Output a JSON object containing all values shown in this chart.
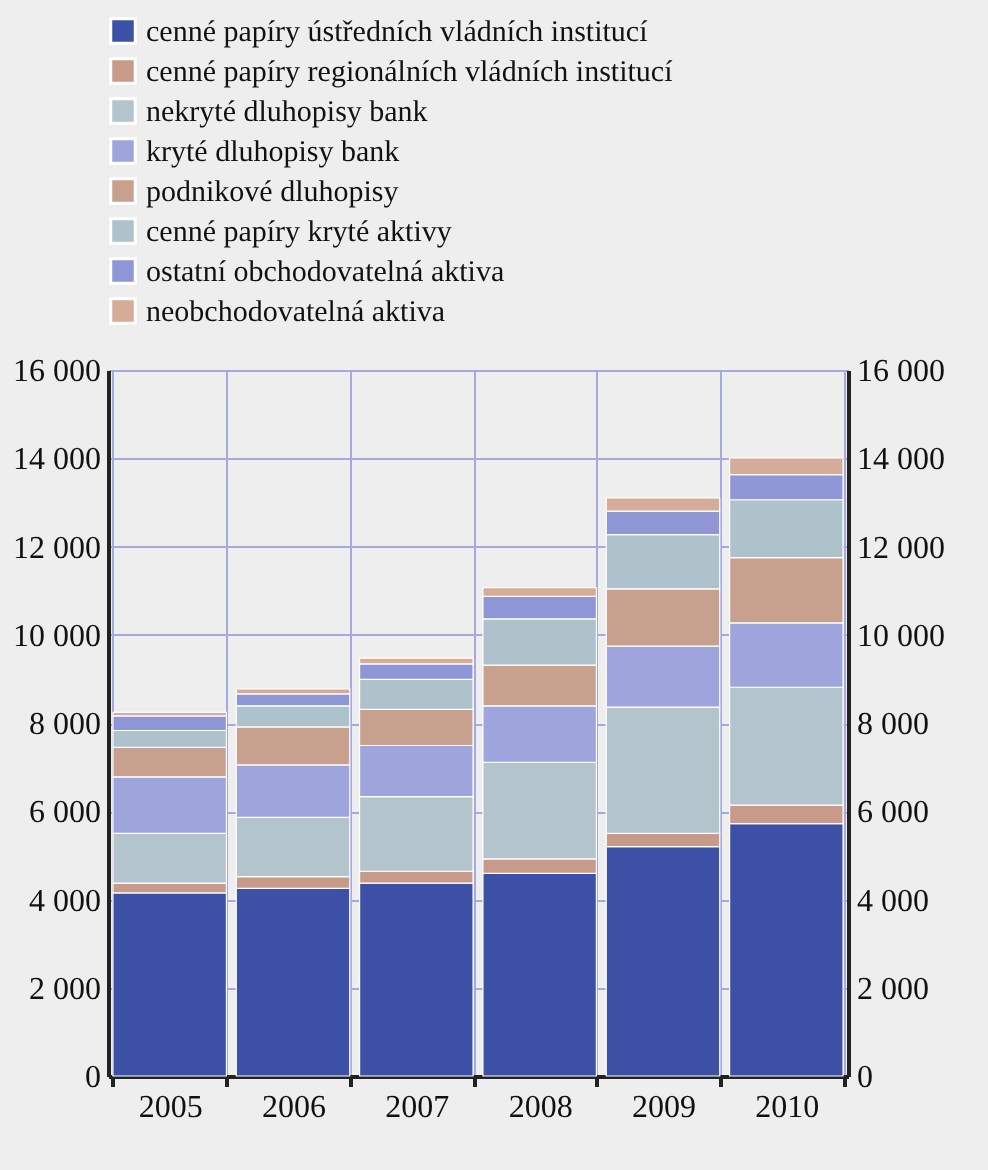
{
  "chart_data": {
    "type": "bar",
    "stacked": true,
    "categories": [
      "2005",
      "2006",
      "2007",
      "2008",
      "2009",
      "2010"
    ],
    "series": [
      {
        "name": "cenné papíry ústředních vládních institucí",
        "color": "#3c50a5",
        "values": [
          4150,
          4250,
          4370,
          4590,
          5200,
          5720
        ]
      },
      {
        "name": "cenné papíry regionálních vládních institucí",
        "color": "#c89a8a",
        "values": [
          220,
          270,
          270,
          330,
          300,
          420
        ]
      },
      {
        "name": "nekryté dluhopisy bank",
        "color": "#b4c4cc",
        "values": [
          1130,
          1340,
          1690,
          2190,
          2860,
          2670
        ]
      },
      {
        "name": "kryté dluhopisy bank",
        "color": "#9ea4dc",
        "values": [
          1280,
          1190,
          1160,
          1280,
          1380,
          1460
        ]
      },
      {
        "name": "podnikové dluhopisy",
        "color": "#c8a08e",
        "values": [
          670,
          860,
          820,
          920,
          1300,
          1480
        ]
      },
      {
        "name": "cenné papíry kryté aktivy",
        "color": "#aec2cc",
        "values": [
          380,
          480,
          680,
          1050,
          1230,
          1310
        ]
      },
      {
        "name": "ostatní obchodovatelná aktiva",
        "color": "#8f96d6",
        "values": [
          330,
          270,
          350,
          510,
          530,
          570
        ]
      },
      {
        "name": "neobchodovatelná aktiva",
        "color": "#d4ac98",
        "values": [
          80,
          110,
          130,
          200,
          300,
          380
        ]
      }
    ],
    "ylim": [
      0,
      16000
    ],
    "yticks": [
      0,
      {
        "value": 2000,
        "label": "2 000"
      },
      {
        "value": 4000,
        "label": "4 000"
      },
      {
        "value": 6000,
        "label": "6 000"
      },
      {
        "value": 8000,
        "label": "8 000"
      },
      {
        "value": 10000,
        "label": "10 000"
      },
      {
        "value": 12000,
        "label": "12 000"
      },
      {
        "value": 14000,
        "label": "14 000"
      },
      {
        "value": 16000,
        "label": "16 000"
      }
    ],
    "y2lim": [
      0,
      16000
    ],
    "y2ticks": [
      0,
      {
        "value": 2000,
        "label": "2 000"
      },
      {
        "value": 4000,
        "label": "4 000"
      },
      {
        "value": 6000,
        "label": "6 000"
      },
      {
        "value": 8000,
        "label": "8 000"
      },
      {
        "value": 10000,
        "label": "10 000"
      },
      {
        "value": 12000,
        "label": "12 000"
      },
      {
        "value": 14000,
        "label": "14 000"
      },
      {
        "value": 16000,
        "label": "16 000"
      }
    ],
    "grid": true,
    "legend": "top left"
  }
}
